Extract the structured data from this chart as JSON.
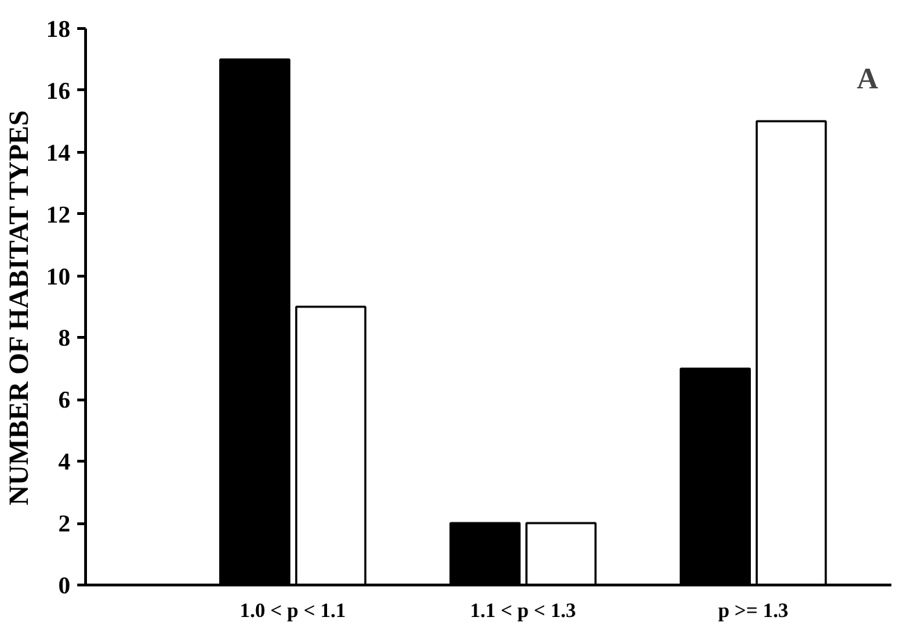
{
  "chart_data": {
    "type": "bar",
    "ylabel": "NUMBER OF HABITAT TYPES",
    "categories": [
      "1.0 < p < 1.1",
      "1.1 < p < 1.3",
      "p >= 1.3"
    ],
    "series": [
      {
        "color": "#000000",
        "values": [
          17,
          2,
          7
        ]
      },
      {
        "color": "#ffffff",
        "values": [
          9,
          2,
          15
        ]
      }
    ],
    "ylim": [
      0,
      18
    ],
    "yticks": [
      0,
      2,
      4,
      6,
      8,
      10,
      12,
      14,
      16,
      18
    ],
    "grid": false,
    "annotations": [
      "A"
    ]
  }
}
